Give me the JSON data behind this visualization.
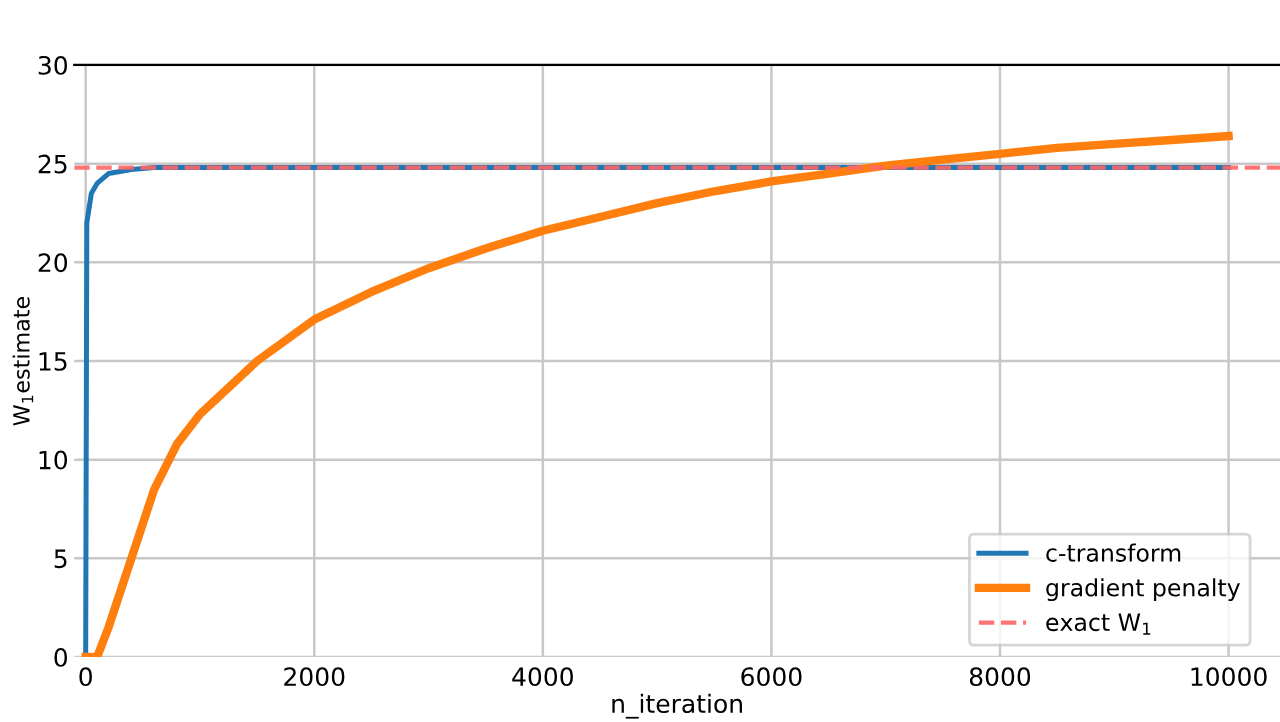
{
  "chart_data": {
    "type": "line",
    "xlabel": "n_iteration",
    "ylabel": "W$_{1}$estimate",
    "xlim": [
      -100,
      10450
    ],
    "ylim": [
      0,
      30
    ],
    "xticks": [
      0,
      2000,
      4000,
      6000,
      8000,
      10000
    ],
    "yticks": [
      0,
      5,
      10,
      15,
      20,
      25,
      30
    ],
    "grid": true,
    "legend": "bottom right",
    "line_style": "solid",
    "marker": "none",
    "series": [
      {
        "name": "c-transform",
        "color": "#1f77b4",
        "x": [
          0,
          10,
          50,
          100,
          200,
          400,
          600,
          1000,
          10000
        ],
        "values": [
          0,
          22,
          23.5,
          24,
          24.5,
          24.7,
          24.8,
          24.8,
          24.8
        ]
      },
      {
        "name": "gradient penalty",
        "color": "#ff7f0e",
        "x": [
          0,
          100,
          200,
          400,
          600,
          800,
          1000,
          1500,
          2000,
          2500,
          3000,
          3500,
          4000,
          4500,
          5000,
          5500,
          6000,
          6500,
          7000,
          7500,
          8000,
          8500,
          9000,
          9500,
          10000
        ],
        "values": [
          0,
          0,
          1.5,
          5,
          8.5,
          10.8,
          12.3,
          15,
          17.1,
          18.5,
          19.7,
          20.7,
          21.6,
          22.3,
          23,
          23.6,
          24.1,
          24.5,
          24.9,
          25.2,
          25.5,
          25.8,
          26,
          26.2,
          26.4
        ]
      }
    ],
    "ref_lines": [
      {
        "axis": "y",
        "value": 24.8,
        "label": "exact W$_{1}$",
        "color": "#ff6666",
        "line_style": "dashed"
      }
    ]
  }
}
